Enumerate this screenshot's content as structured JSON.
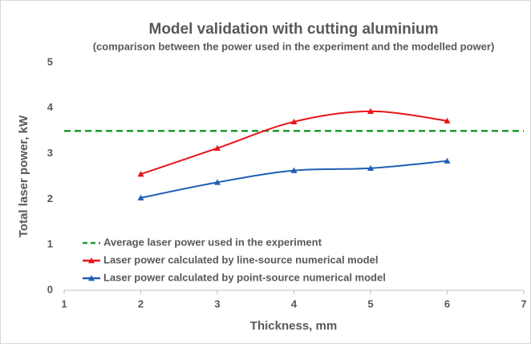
{
  "chart_data": {
    "type": "line",
    "title": "Model validation with cutting aluminium",
    "subtitle": "(comparison between the power used in the experiment and the modelled power)",
    "x_label": "Thickness, mm",
    "y_label": "Total laser power, kW",
    "xlim": [
      1,
      7
    ],
    "xticks": [
      1,
      2,
      3,
      4,
      5,
      6,
      7
    ],
    "ylim": [
      0,
      5
    ],
    "yticks": [
      0,
      1,
      2,
      3,
      4,
      5
    ],
    "grid": false,
    "legend": "lower left",
    "series": [
      {
        "name": "Average laser power used in the experiment",
        "color": "#1e9a2e",
        "dashed": true,
        "marker": "none",
        "smooth": false,
        "x": [
          1,
          7
        ],
        "values": [
          3.5,
          3.5
        ]
      },
      {
        "name": "Laser power calculated by line-source numerical model",
        "color": "#e8141b",
        "dashed": false,
        "marker": "triangle",
        "smooth": true,
        "x": [
          2,
          3,
          4,
          5,
          6
        ],
        "values": [
          2.55,
          3.12,
          3.7,
          3.93,
          3.72
        ]
      },
      {
        "name": "Laser power calculated by point-source numerical model",
        "color": "#1f5fb5",
        "dashed": false,
        "marker": "triangle",
        "smooth": true,
        "x": [
          2,
          3,
          4,
          5,
          6
        ],
        "values": [
          2.03,
          2.37,
          2.63,
          2.68,
          2.84
        ]
      }
    ]
  }
}
